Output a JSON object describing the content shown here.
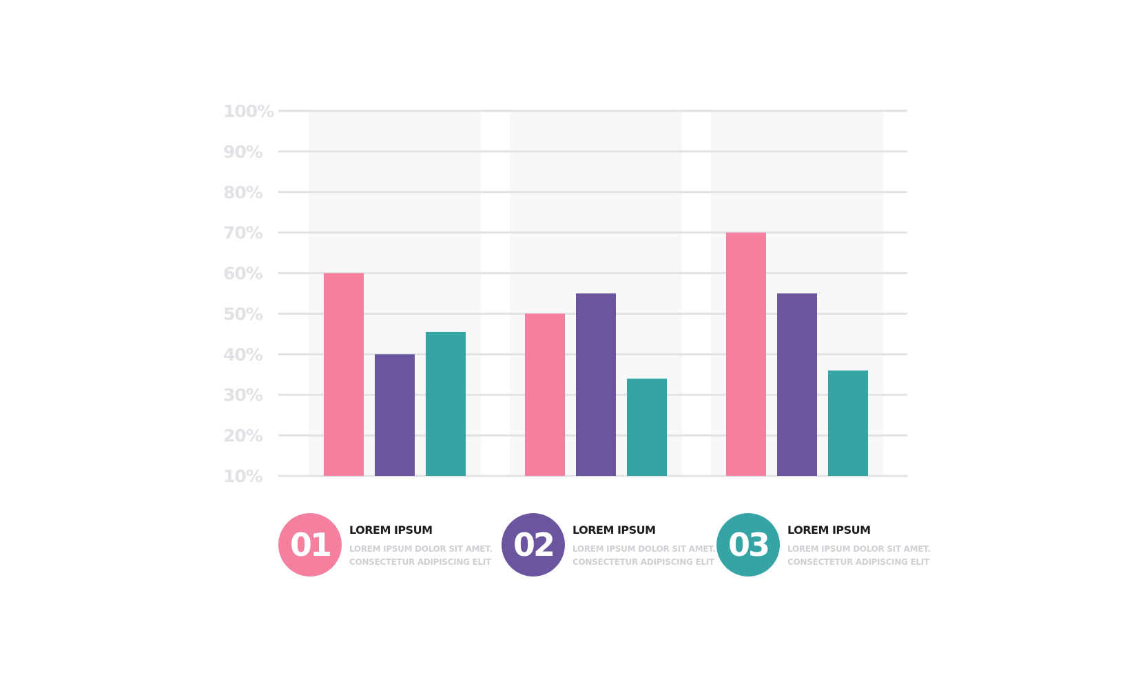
{
  "colors": {
    "pink": "#f47f9f",
    "purple": "#6a559e",
    "teal": "#36a3a5",
    "grid": "#e2e2e6",
    "band": "#f8f8f9",
    "tick_text": "#e1e1e6"
  },
  "chart_data": {
    "type": "bar",
    "title": "",
    "xlabel": "",
    "ylabel": "",
    "categories": [
      "01",
      "02",
      "03"
    ],
    "series": [
      {
        "color": "#f47f9f",
        "values": [
          60,
          50,
          70
        ]
      },
      {
        "color": "#6a559e",
        "values": [
          40,
          55,
          55
        ]
      },
      {
        "color": "#36a3a5",
        "values": [
          45.5,
          34,
          36
        ]
      }
    ],
    "ylim": [
      10,
      100
    ],
    "yticks": [
      100,
      90,
      80,
      70,
      60,
      50,
      40,
      30,
      20,
      10
    ],
    "ytick_labels": [
      "100%",
      "90%",
      "80%",
      "70%",
      "60%",
      "50%",
      "40%",
      "30%",
      "20%",
      "10%"
    ],
    "grid": true,
    "legend_position": "bottom"
  },
  "legend": [
    {
      "number": "01",
      "title": "LOREM IPSUM",
      "line1": "LOREM IPSUM DOLOR SIT AMET.",
      "line2": "CONSECTETUR ADIPISCING ELIT",
      "color": "#f47f9f"
    },
    {
      "number": "02",
      "title": "LOREM IPSUM",
      "line1": "LOREM IPSUM DOLOR SIT AMET.",
      "line2": "CONSECTETUR ADIPISCING ELIT",
      "color": "#6a559e"
    },
    {
      "number": "03",
      "title": "LOREM IPSUM",
      "line1": "LOREM IPSUM DOLOR SIT AMET.",
      "line2": "CONSECTETUR ADIPISCING ELIT",
      "color": "#36a3a5"
    }
  ]
}
